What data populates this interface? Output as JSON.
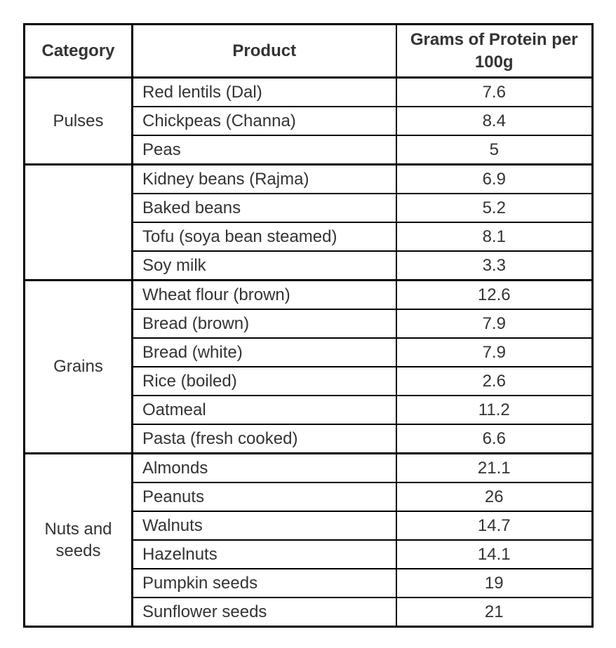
{
  "table": {
    "headers": [
      "Category",
      "Product",
      "Grams of Protein per 100g"
    ],
    "groups": [
      {
        "category": "Pulses",
        "rows": [
          {
            "product": "Red lentils (Dal)",
            "protein": "7.6"
          },
          {
            "product": "Chickpeas (Channa)",
            "protein": "8.4"
          },
          {
            "product": "Peas",
            "protein": "5"
          }
        ]
      },
      {
        "category": "",
        "rows": [
          {
            "product": "Kidney beans (Rajma)",
            "protein": "6.9"
          },
          {
            "product": "Baked beans",
            "protein": "5.2"
          },
          {
            "product": "Tofu (soya bean steamed)",
            "protein": "8.1"
          },
          {
            "product": "Soy milk",
            "protein": "3.3"
          }
        ]
      },
      {
        "category": "Grains",
        "rows": [
          {
            "product": "Wheat flour (brown)",
            "protein": "12.6"
          },
          {
            "product": "Bread (brown)",
            "protein": "7.9"
          },
          {
            "product": "Bread (white)",
            "protein": "7.9"
          },
          {
            "product": "Rice (boiled)",
            "protein": "2.6"
          },
          {
            "product": "Oatmeal",
            "protein": "11.2"
          },
          {
            "product": "Pasta (fresh cooked)",
            "protein": "6.6"
          }
        ]
      },
      {
        "category": "Nuts and seeds",
        "rows": [
          {
            "product": "Almonds",
            "protein": "21.1"
          },
          {
            "product": "Peanuts",
            "protein": "26"
          },
          {
            "product": "Walnuts",
            "protein": "14.7"
          },
          {
            "product": "Hazelnuts",
            "protein": "14.1"
          },
          {
            "product": "Pumpkin seeds",
            "protein": "19"
          },
          {
            "product": "Sunflower seeds",
            "protein": "21"
          }
        ]
      }
    ],
    "colors": {
      "border": "#000000",
      "text": "#333333",
      "background": "#ffffff"
    }
  }
}
